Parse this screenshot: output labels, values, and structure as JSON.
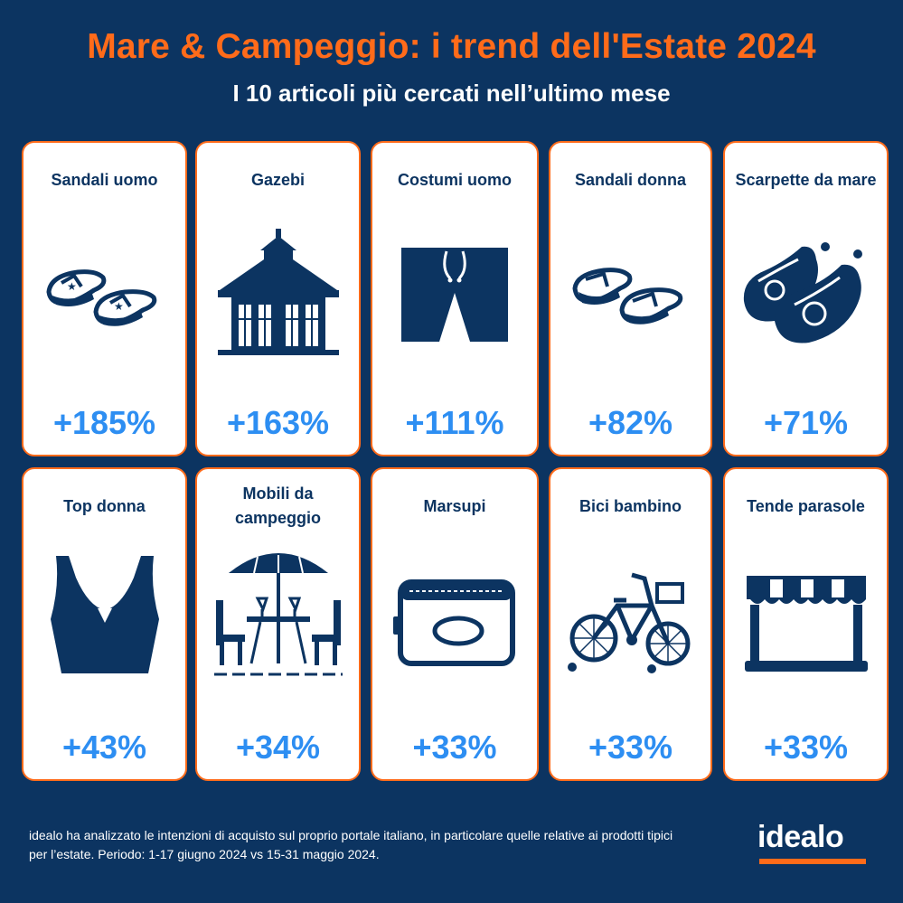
{
  "header": {
    "title": "Mare & Campeggio: i trend dell'Estate 2024",
    "subtitle": "I 10 articoli più cercati nell’ultimo mese"
  },
  "items": [
    {
      "label": "Sandali uomo",
      "value": "+185%",
      "icon": "flip-flops-icon"
    },
    {
      "label": "Gazebi",
      "value": "+163%",
      "icon": "gazebo-icon"
    },
    {
      "label": "Costumi uomo",
      "value": "+111%",
      "icon": "swim-shorts-icon"
    },
    {
      "label": "Sandali donna",
      "value": "+82%",
      "icon": "flip-flops-icon"
    },
    {
      "label": "Scarpette da mare",
      "value": "+71%",
      "icon": "water-shoes-icon"
    },
    {
      "label": "Top donna",
      "value": "+43%",
      "icon": "crop-top-icon"
    },
    {
      "label": "Mobili da campeggio",
      "value": "+34%",
      "icon": "patio-furniture-icon"
    },
    {
      "label": "Marsupi",
      "value": "+33%",
      "icon": "belt-bag-icon"
    },
    {
      "label": "Bici bambino",
      "value": "+33%",
      "icon": "kids-bike-icon"
    },
    {
      "label": "Tende parasole",
      "value": "+33%",
      "icon": "awning-icon"
    }
  ],
  "footer": {
    "note": "idealo ha analizzato le intenzioni di acquisto sul proprio portale italiano, in particolare quelle relative ai prodotti tipici per l’estate. Periodo: 1-17 giugno 2024 vs 15-31 maggio 2024.",
    "brand": "idealo"
  },
  "colors": {
    "background": "#0c3461",
    "accent": "#ff6b1a",
    "value": "#2d8ef2",
    "card": "#ffffff"
  }
}
